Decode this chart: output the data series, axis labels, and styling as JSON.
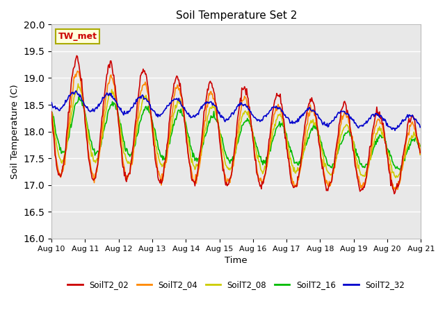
{
  "title": "Soil Temperature Set 2",
  "xlabel": "Time",
  "ylabel": "Soil Temperature (C)",
  "ylim": [
    16.0,
    20.0
  ],
  "yticks": [
    16.0,
    16.5,
    17.0,
    17.5,
    18.0,
    18.5,
    19.0,
    19.5,
    20.0
  ],
  "bg_color": "#e8e8e8",
  "fig_color": "#ffffff",
  "annotation_text": "TW_met",
  "annotation_color": "#cc0000",
  "annotation_bg": "#ffffdd",
  "annotation_border": "#aaaa00",
  "legend_colors": [
    "#cc0000",
    "#ff8800",
    "#cccc00",
    "#00bb00",
    "#0000cc"
  ],
  "legend_labels": [
    "SoilT2_02",
    "SoilT2_04",
    "SoilT2_08",
    "SoilT2_16",
    "SoilT2_32"
  ],
  "num_days": 11,
  "points_per_day": 48
}
